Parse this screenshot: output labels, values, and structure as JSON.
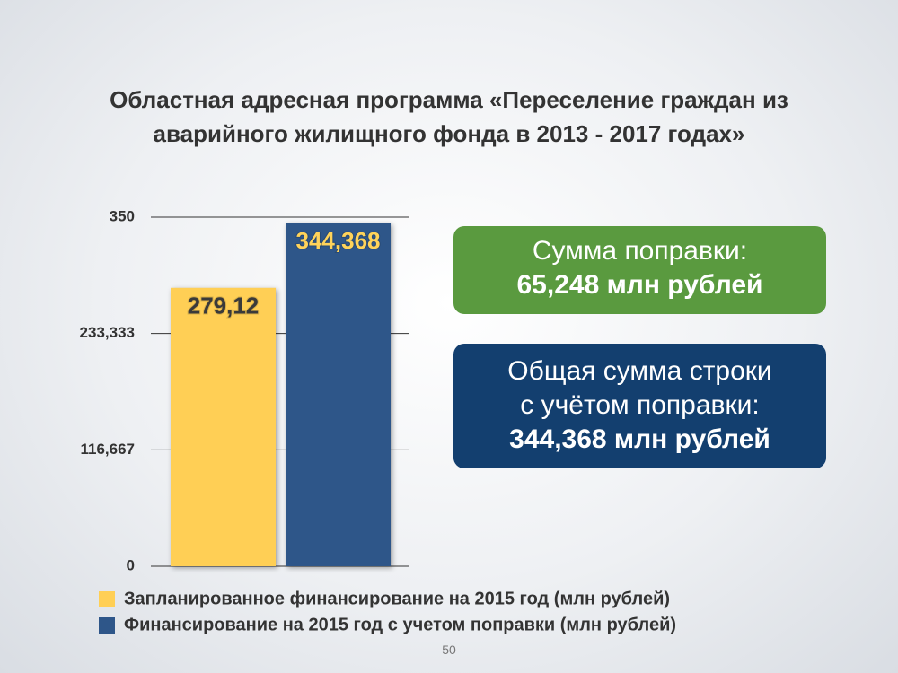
{
  "chart_data": {
    "type": "bar",
    "title": "Областная адресная программа «Переселение граждан из аварийного жилищного фонда в 2013 - 2017 годах»",
    "categories": [
      null
    ],
    "series": [
      {
        "name": "Запланированное финансирование на 2015 год (млн рублей)",
        "color": "#ffcf55",
        "label_color": "#3a3a3a",
        "values": [
          279.12
        ],
        "value_labels": [
          "279,12"
        ]
      },
      {
        "name": "Финансирование на 2015 год с учетом поправки (млн рублей)",
        "color": "#2e5689",
        "label_color": "#ffd35a",
        "values": [
          344.368
        ],
        "value_labels": [
          "344,368"
        ]
      }
    ],
    "ylim": [
      0,
      350
    ],
    "yticks": [
      0,
      {
        "value": 116.667,
        "label": "116,667"
      },
      {
        "value": 233.333,
        "label": "233,333"
      },
      350
    ],
    "grid": true
  },
  "callouts": [
    {
      "lines": [
        "Сумма поправки:",
        "65,248 млн рублей"
      ]
    },
    {
      "lines": [
        "Общая сумма строки",
        "с учётом поправки:",
        "344,368 млн рублей"
      ]
    }
  ],
  "page_number": "50"
}
